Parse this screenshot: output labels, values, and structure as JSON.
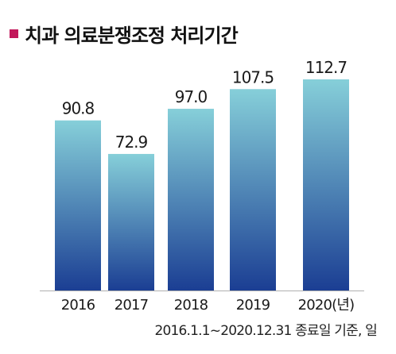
{
  "title": "치과 의료분쟁조정 처리기간",
  "footnote": "2016.1.1~2020.12.31 종료일 기준, 일",
  "colors": {
    "title_marker": "#c2185b",
    "bar_top": "#86cfd9",
    "bar_bottom": "#1b3e93",
    "baseline": "#b0b0b0"
  },
  "chart_data": {
    "type": "bar",
    "categories": [
      "2016",
      "2017",
      "2018",
      "2019",
      "2020(년)"
    ],
    "values": [
      90.8,
      72.9,
      97.0,
      107.5,
      112.7
    ],
    "value_labels": [
      "90.8",
      "72.9",
      "97.0",
      "107.5",
      "112.7"
    ],
    "title": "치과 의료분쟁조정 처리기간",
    "xlabel": "",
    "ylabel": "",
    "ylim": [
      0,
      112.7
    ],
    "grid": false,
    "legend": "none"
  }
}
